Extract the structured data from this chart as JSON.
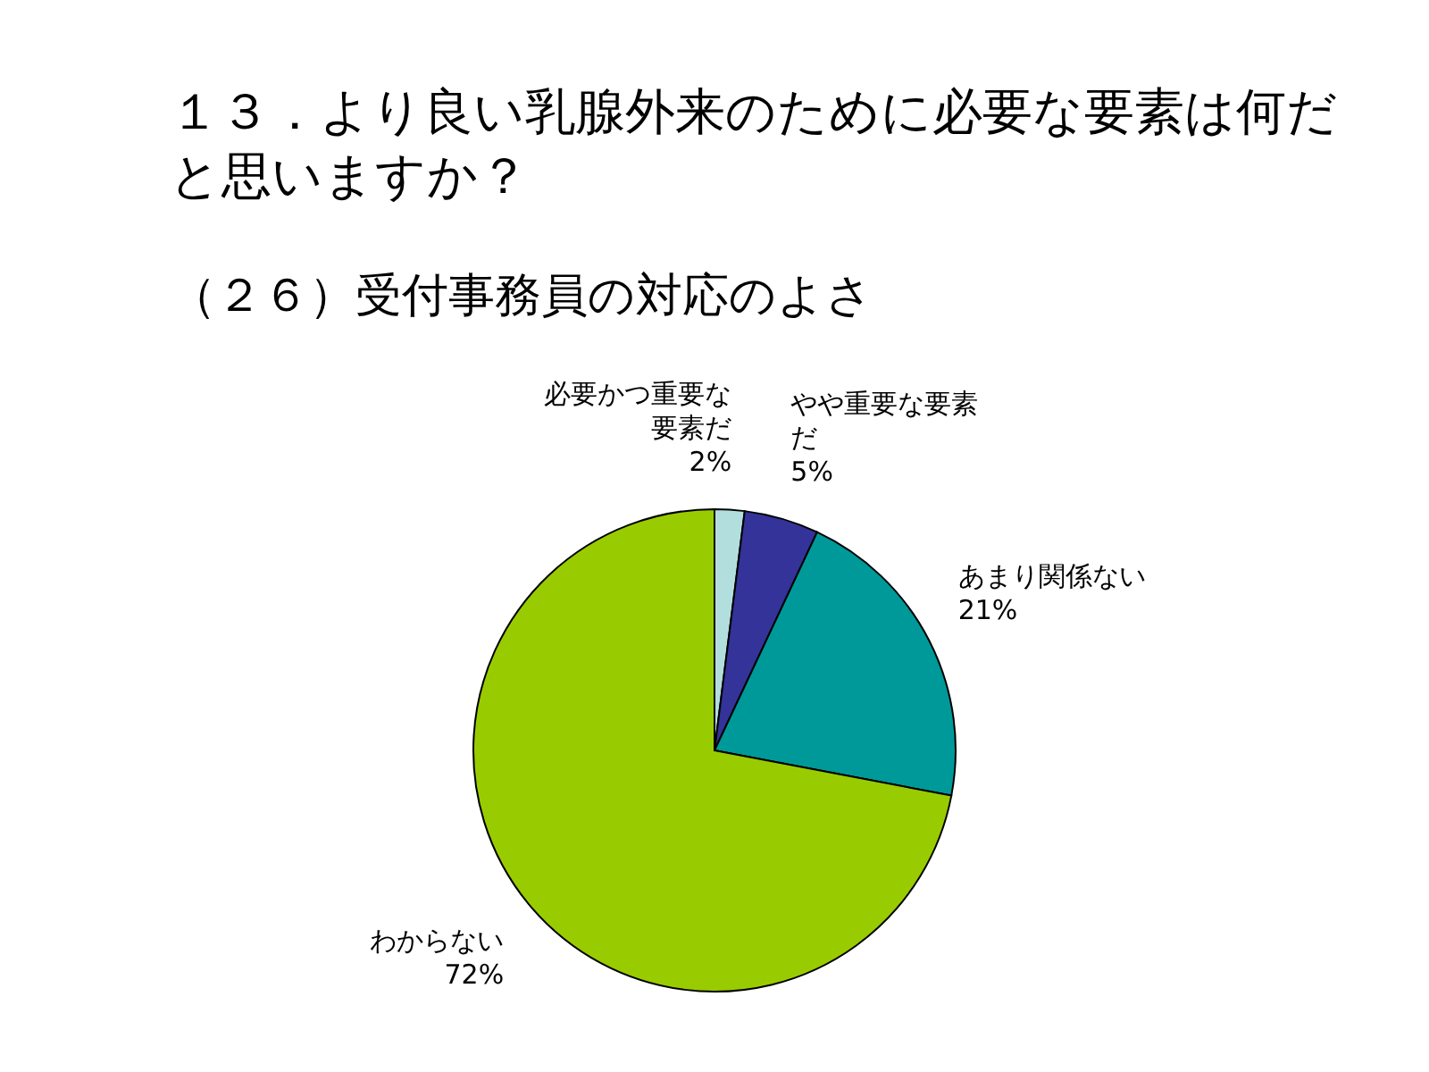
{
  "chart_data": {
    "type": "pie",
    "title": "１３．より良い乳腺外来のために必要な要素は何だと思いますか？",
    "subtitle": "（２６）受付事務員の対応のよさ",
    "categories": [
      "必要かつ重要な要素だ",
      "やや重要な要素だ",
      "あまり関係ない",
      "わからない"
    ],
    "values": [
      2,
      5,
      21,
      72
    ],
    "value_labels": [
      "2%",
      "5%",
      "21%",
      "72%"
    ],
    "colors": [
      "#b3dede",
      "#333399",
      "#009999",
      "#99cc00"
    ]
  }
}
